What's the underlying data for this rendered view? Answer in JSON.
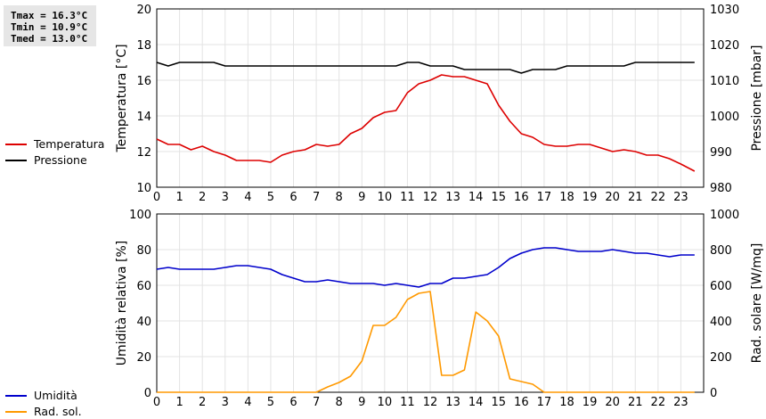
{
  "stats": {
    "tmax": "Tmax = 16.3°C",
    "tmin": "Tmin = 10.9°C",
    "tmed": "Tmed = 13.0°C"
  },
  "legend_top": [
    {
      "label": "Temperatura",
      "color": "#dd0000"
    },
    {
      "label": "Pressione",
      "color": "#000000"
    }
  ],
  "legend_bottom": [
    {
      "label": "Umidità",
      "color": "#0000cc"
    },
    {
      "label": "Rad. sol.",
      "color": "#ff9900"
    }
  ],
  "chart_data": [
    {
      "type": "line",
      "xlim": [
        0,
        24
      ],
      "x_ticks": [
        0,
        1,
        2,
        3,
        4,
        5,
        6,
        7,
        8,
        9,
        10,
        11,
        12,
        13,
        14,
        15,
        16,
        17,
        18,
        19,
        20,
        21,
        22,
        23
      ],
      "ylabel": "Temperatura [°C]",
      "ylim": [
        10,
        20
      ],
      "y_ticks": [
        10,
        12,
        14,
        16,
        18,
        20
      ],
      "y2label": "Pressione [mbar]",
      "y2lim": [
        980,
        1030
      ],
      "y2_ticks": [
        980,
        990,
        1000,
        1010,
        1020,
        1030
      ],
      "grid": true,
      "series": [
        {
          "name": "Temperatura",
          "axis": "left",
          "color": "#dd0000",
          "x": [
            0,
            0.5,
            1,
            1.5,
            2,
            2.5,
            3,
            3.5,
            4,
            4.5,
            5,
            5.5,
            6,
            6.5,
            7,
            7.5,
            8,
            8.5,
            9,
            9.5,
            10,
            10.5,
            11,
            11.5,
            12,
            12.5,
            13,
            13.5,
            14,
            14.5,
            15,
            15.5,
            16,
            16.5,
            17,
            17.5,
            18,
            18.5,
            19,
            19.5,
            20,
            20.5,
            21,
            21.5,
            22,
            22.5,
            23,
            23.6
          ],
          "y": [
            12.7,
            12.4,
            12.4,
            12.1,
            12.3,
            12.0,
            11.8,
            11.5,
            11.5,
            11.5,
            11.4,
            11.8,
            12.0,
            12.1,
            12.4,
            12.3,
            12.4,
            13.0,
            13.3,
            13.9,
            14.2,
            14.3,
            15.3,
            15.8,
            16.0,
            16.3,
            16.2,
            16.2,
            16.0,
            15.8,
            14.6,
            13.7,
            13.0,
            12.8,
            12.4,
            12.3,
            12.3,
            12.4,
            12.4,
            12.2,
            12.0,
            12.1,
            12.0,
            11.8,
            11.8,
            11.6,
            11.3,
            10.9
          ]
        },
        {
          "name": "Pressione",
          "axis": "right",
          "color": "#000000",
          "x": [
            0,
            0.5,
            1,
            1.5,
            2,
            2.5,
            3,
            3.5,
            4,
            4.5,
            5,
            5.5,
            6,
            6.5,
            7,
            7.5,
            8,
            8.5,
            9,
            9.5,
            10,
            10.5,
            11,
            11.5,
            12,
            12.5,
            13,
            13.5,
            14,
            14.5,
            15,
            15.5,
            16,
            16.5,
            17,
            17.5,
            18,
            18.5,
            19,
            19.5,
            20,
            20.5,
            21,
            21.5,
            22,
            22.5,
            23,
            23.6
          ],
          "y": [
            1015,
            1014,
            1015,
            1015,
            1015,
            1015,
            1014,
            1014,
            1014,
            1014,
            1014,
            1014,
            1014,
            1014,
            1014,
            1014,
            1014,
            1014,
            1014,
            1014,
            1014,
            1014,
            1015,
            1015,
            1014,
            1014,
            1014,
            1013,
            1013,
            1013,
            1013,
            1013,
            1012,
            1013,
            1013,
            1013,
            1014,
            1014,
            1014,
            1014,
            1014,
            1014,
            1015,
            1015,
            1015,
            1015,
            1015,
            1015
          ]
        }
      ]
    },
    {
      "type": "line",
      "xlim": [
        0,
        24
      ],
      "x_ticks": [
        0,
        1,
        2,
        3,
        4,
        5,
        6,
        7,
        8,
        9,
        10,
        11,
        12,
        13,
        14,
        15,
        16,
        17,
        18,
        19,
        20,
        21,
        22,
        23
      ],
      "ylabel": "Umidità relativa [%]",
      "ylim": [
        0,
        100
      ],
      "y_ticks": [
        0,
        20,
        40,
        60,
        80,
        100
      ],
      "y2label": "Rad. solare [W/mq]",
      "y2lim": [
        0,
        1000
      ],
      "y2_ticks": [
        0,
        200,
        400,
        600,
        800,
        1000
      ],
      "grid": true,
      "series": [
        {
          "name": "Umidità",
          "axis": "left",
          "color": "#0000cc",
          "x": [
            0,
            0.5,
            1,
            1.5,
            2,
            2.5,
            3,
            3.5,
            4,
            4.5,
            5,
            5.5,
            6,
            6.5,
            7,
            7.5,
            8,
            8.5,
            9,
            9.5,
            10,
            10.5,
            11,
            11.5,
            12,
            12.5,
            13,
            13.5,
            14,
            14.5,
            15,
            15.5,
            16,
            16.5,
            17,
            17.5,
            18,
            18.5,
            19,
            19.5,
            20,
            20.5,
            21,
            21.5,
            22,
            22.5,
            23,
            23.6
          ],
          "y": [
            69,
            70,
            69,
            69,
            69,
            69,
            70,
            71,
            71,
            70,
            69,
            66,
            64,
            62,
            62,
            63,
            62,
            61,
            61,
            61,
            60,
            61,
            60,
            59,
            61,
            61,
            64,
            64,
            65,
            66,
            70,
            75,
            78,
            80,
            81,
            81,
            80,
            79,
            79,
            79,
            80,
            79,
            78,
            78,
            77,
            76,
            77,
            77
          ]
        },
        {
          "name": "Rad. sol.",
          "axis": "right",
          "color": "#ff9900",
          "x": [
            0,
            1,
            2,
            3,
            4,
            5,
            6,
            7,
            7.5,
            8,
            8.5,
            9,
            9.5,
            10,
            10.5,
            11,
            11.5,
            12,
            12.5,
            13,
            13.5,
            14,
            14.5,
            15,
            15.5,
            16,
            16.5,
            17,
            18,
            19,
            20,
            21,
            22,
            23,
            23.6
          ],
          "y": [
            0,
            0,
            0,
            0,
            0,
            0,
            0,
            0,
            30,
            55,
            90,
            175,
            375,
            375,
            420,
            520,
            555,
            565,
            95,
            95,
            125,
            450,
            400,
            315,
            75,
            60,
            45,
            0,
            0,
            0,
            0,
            0,
            0,
            0,
            0
          ]
        }
      ]
    }
  ]
}
